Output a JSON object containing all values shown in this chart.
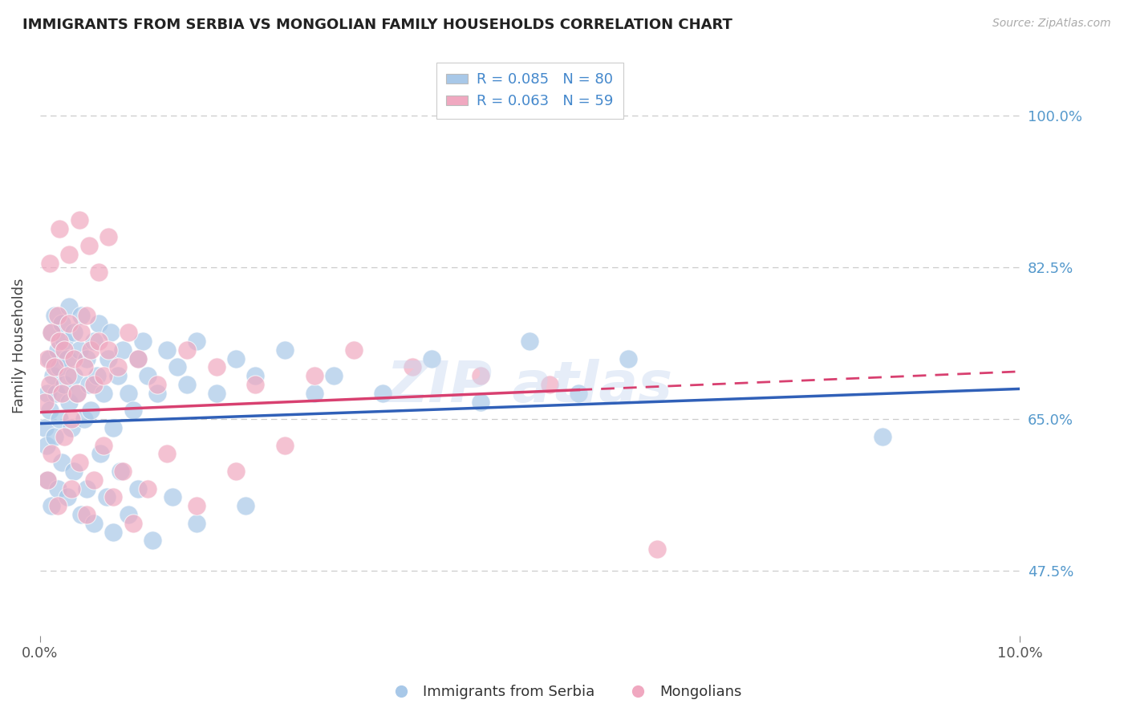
{
  "title": "IMMIGRANTS FROM SERBIA VS MONGOLIAN FAMILY HOUSEHOLDS CORRELATION CHART",
  "source": "Source: ZipAtlas.com",
  "xlabel_blue": "Immigrants from Serbia",
  "xlabel_pink": "Mongolians",
  "ylabel": "Family Households",
  "xlim": [
    0.0,
    10.0
  ],
  "ylim": [
    40.0,
    107.0
  ],
  "ytick_vals": [
    47.5,
    65.0,
    82.5,
    100.0
  ],
  "xtick_vals": [
    0.0,
    10.0
  ],
  "legend_blue_label": "R = 0.085   N = 80",
  "legend_pink_label": "R = 0.063   N = 59",
  "blue_dot_color": "#a8c8e8",
  "pink_dot_color": "#f0a8c0",
  "trend_blue_color": "#3060b8",
  "trend_pink_color": "#d84070",
  "bg_color": "#ffffff",
  "grid_color": "#cccccc",
  "blue_trend_y0": 64.5,
  "blue_trend_y1": 68.5,
  "pink_trend_y0": 65.8,
  "pink_trend_y1": 70.5,
  "pink_solid_end_x": 5.5,
  "blue_x": [
    0.05,
    0.07,
    0.08,
    0.1,
    0.1,
    0.12,
    0.13,
    0.15,
    0.15,
    0.17,
    0.18,
    0.2,
    0.2,
    0.22,
    0.25,
    0.25,
    0.28,
    0.3,
    0.3,
    0.32,
    0.35,
    0.35,
    0.38,
    0.4,
    0.42,
    0.45,
    0.48,
    0.5,
    0.52,
    0.55,
    0.58,
    0.6,
    0.65,
    0.7,
    0.72,
    0.75,
    0.8,
    0.85,
    0.9,
    0.95,
    1.0,
    1.05,
    1.1,
    1.2,
    1.3,
    1.4,
    1.5,
    1.6,
    1.8,
    2.0,
    2.2,
    2.5,
    2.8,
    3.0,
    3.5,
    4.0,
    4.5,
    5.0,
    5.5,
    6.0,
    0.08,
    0.12,
    0.18,
    0.22,
    0.28,
    0.35,
    0.42,
    0.48,
    0.55,
    0.62,
    0.68,
    0.75,
    0.82,
    0.9,
    1.0,
    1.15,
    1.35,
    1.6,
    2.1,
    8.6
  ],
  "blue_y": [
    64.0,
    62.0,
    68.0,
    72.0,
    66.0,
    75.0,
    70.0,
    77.0,
    63.0,
    68.0,
    73.0,
    65.0,
    71.0,
    76.0,
    69.0,
    74.0,
    72.0,
    67.0,
    78.0,
    64.0,
    70.0,
    75.0,
    68.0,
    73.0,
    77.0,
    65.0,
    72.0,
    69.0,
    66.0,
    74.0,
    70.0,
    76.0,
    68.0,
    72.0,
    75.0,
    64.0,
    70.0,
    73.0,
    68.0,
    66.0,
    72.0,
    74.0,
    70.0,
    68.0,
    73.0,
    71.0,
    69.0,
    74.0,
    68.0,
    72.0,
    70.0,
    73.0,
    68.0,
    70.0,
    68.0,
    72.0,
    67.0,
    74.0,
    68.0,
    72.0,
    58.0,
    55.0,
    57.0,
    60.0,
    56.0,
    59.0,
    54.0,
    57.0,
    53.0,
    61.0,
    56.0,
    52.0,
    59.0,
    54.0,
    57.0,
    51.0,
    56.0,
    53.0,
    55.0,
    63.0
  ],
  "pink_x": [
    0.05,
    0.08,
    0.1,
    0.12,
    0.15,
    0.18,
    0.2,
    0.22,
    0.25,
    0.28,
    0.3,
    0.32,
    0.35,
    0.38,
    0.42,
    0.45,
    0.48,
    0.52,
    0.55,
    0.6,
    0.65,
    0.7,
    0.8,
    0.9,
    1.0,
    1.2,
    1.5,
    1.8,
    2.2,
    2.8,
    3.2,
    3.8,
    4.5,
    5.2,
    6.3,
    0.08,
    0.12,
    0.18,
    0.25,
    0.32,
    0.4,
    0.48,
    0.55,
    0.65,
    0.75,
    0.85,
    0.95,
    1.1,
    1.3,
    1.6,
    2.0,
    2.5,
    0.1,
    0.2,
    0.3,
    0.4,
    0.5,
    0.6,
    0.7
  ],
  "pink_y": [
    67.0,
    72.0,
    69.0,
    75.0,
    71.0,
    77.0,
    74.0,
    68.0,
    73.0,
    70.0,
    76.0,
    65.0,
    72.0,
    68.0,
    75.0,
    71.0,
    77.0,
    73.0,
    69.0,
    74.0,
    70.0,
    73.0,
    71.0,
    75.0,
    72.0,
    69.0,
    73.0,
    71.0,
    69.0,
    70.0,
    73.0,
    71.0,
    70.0,
    69.0,
    50.0,
    58.0,
    61.0,
    55.0,
    63.0,
    57.0,
    60.0,
    54.0,
    58.0,
    62.0,
    56.0,
    59.0,
    53.0,
    57.0,
    61.0,
    55.0,
    59.0,
    62.0,
    83.0,
    87.0,
    84.0,
    88.0,
    85.0,
    82.0,
    86.0
  ]
}
